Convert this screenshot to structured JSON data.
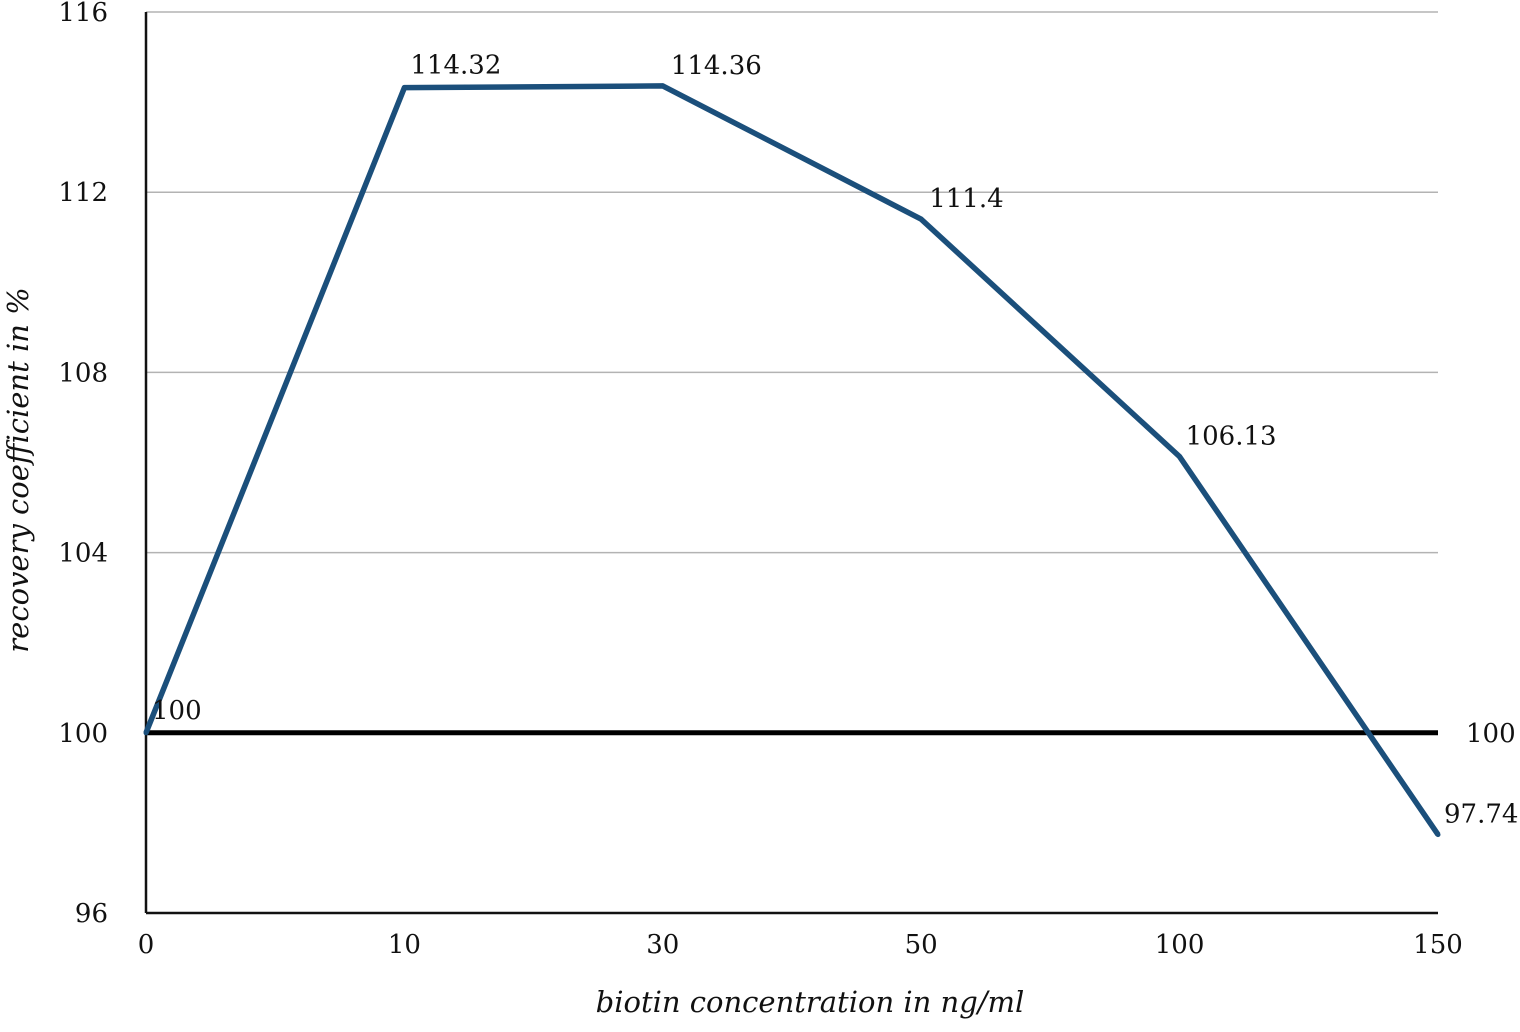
{
  "chart_data": {
    "type": "line",
    "title": "",
    "xlabel": "biotin concentration in ng/ml",
    "ylabel": "recovery coefficient in %",
    "categories": [
      "0",
      "10",
      "30",
      "50",
      "100",
      "150"
    ],
    "series": [
      {
        "values": [
          100,
          114.32,
          114.36,
          111.4,
          106.13,
          97.74
        ],
        "color": "#1b4f7b"
      }
    ],
    "data_labels": [
      "100",
      "114.32",
      "114.36",
      "111.4",
      "106.13",
      "97.74"
    ],
    "reference_line": {
      "value": 100,
      "label": "100",
      "color": "#000000"
    },
    "ylim": [
      96,
      116
    ],
    "yticks": [
      96,
      100,
      104,
      108,
      112,
      116
    ],
    "ytick_labels": [
      "96",
      "100",
      "104",
      "108",
      "112",
      "116"
    ],
    "grid": true,
    "legend": false
  }
}
